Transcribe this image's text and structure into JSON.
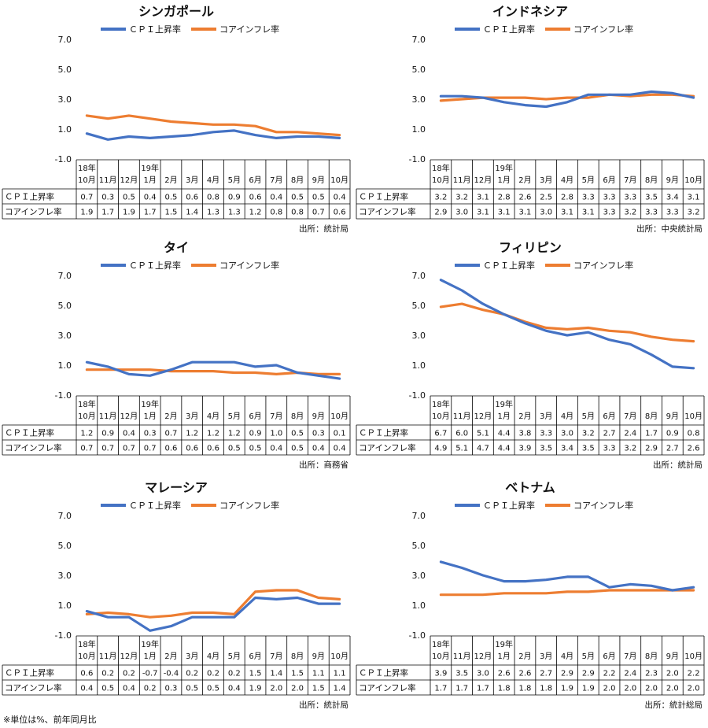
{
  "footnote": "※単位は%、前年同月比",
  "colors": {
    "cpi": "#4472c4",
    "core": "#ed7d31",
    "grid": "#000000"
  },
  "legend": {
    "cpi": "ＣＰＩ上昇率",
    "core": "コアインフレ率"
  },
  "row_labels": {
    "cpi": "ＣＰＩ上昇率",
    "core": "コアインフレ率"
  },
  "chart_data": [
    {
      "type": "line",
      "title": "シンガポール",
      "source": "出所：統計局",
      "ylim": [
        -1.0,
        7.0
      ],
      "yticks": [
        "7.0",
        "5.0",
        "3.0",
        "1.0",
        "-1.0"
      ],
      "categories": [
        [
          "18年",
          "10月"
        ],
        [
          "",
          "11月"
        ],
        [
          "",
          "12月"
        ],
        [
          "19年",
          "1月"
        ],
        [
          "",
          "2月"
        ],
        [
          "",
          "3月"
        ],
        [
          "",
          "4月"
        ],
        [
          "",
          "5月"
        ],
        [
          "",
          "6月"
        ],
        [
          "",
          "7月"
        ],
        [
          "",
          "8月"
        ],
        [
          "",
          "9月"
        ],
        [
          "",
          "10月"
        ]
      ],
      "series": [
        {
          "name": "ＣＰＩ上昇率",
          "values": [
            0.7,
            0.3,
            0.5,
            0.4,
            0.5,
            0.6,
            0.8,
            0.9,
            0.6,
            0.4,
            0.5,
            0.5,
            0.4
          ]
        },
        {
          "name": "コアインフレ率",
          "values": [
            1.9,
            1.7,
            1.9,
            1.7,
            1.5,
            1.4,
            1.3,
            1.3,
            1.2,
            0.8,
            0.8,
            0.7,
            0.6
          ]
        }
      ]
    },
    {
      "type": "line",
      "title": "インドネシア",
      "source": "出所：中央統計局",
      "ylim": [
        -1.0,
        7.0
      ],
      "yticks": [
        "7.0",
        "5.0",
        "3.0",
        "1.0",
        "-1.0"
      ],
      "categories": [
        [
          "18年",
          "10月"
        ],
        [
          "",
          "11月"
        ],
        [
          "",
          "12月"
        ],
        [
          "19年",
          "1月"
        ],
        [
          "",
          "2月"
        ],
        [
          "",
          "3月"
        ],
        [
          "",
          "4月"
        ],
        [
          "",
          "5月"
        ],
        [
          "",
          "6月"
        ],
        [
          "",
          "7月"
        ],
        [
          "",
          "8月"
        ],
        [
          "",
          "9月"
        ],
        [
          "",
          "10月"
        ]
      ],
      "series": [
        {
          "name": "ＣＰＩ上昇率",
          "values": [
            3.2,
            3.2,
            3.1,
            2.8,
            2.6,
            2.5,
            2.8,
            3.3,
            3.3,
            3.3,
            3.5,
            3.4,
            3.1
          ]
        },
        {
          "name": "コアインフレ率",
          "values": [
            2.9,
            3.0,
            3.1,
            3.1,
            3.1,
            3.0,
            3.1,
            3.1,
            3.3,
            3.2,
            3.3,
            3.3,
            3.2
          ]
        }
      ]
    },
    {
      "type": "line",
      "title": "タイ",
      "source": "出所：商務省",
      "ylim": [
        -1.0,
        7.0
      ],
      "yticks": [
        "7.0",
        "5.0",
        "3.0",
        "1.0",
        "-1.0"
      ],
      "categories": [
        [
          "18年",
          "10月"
        ],
        [
          "",
          "11月"
        ],
        [
          "",
          "12月"
        ],
        [
          "19年",
          "1月"
        ],
        [
          "",
          "2月"
        ],
        [
          "",
          "3月"
        ],
        [
          "",
          "4月"
        ],
        [
          "",
          "5月"
        ],
        [
          "",
          "6月"
        ],
        [
          "",
          "7月"
        ],
        [
          "",
          "8月"
        ],
        [
          "",
          "9月"
        ],
        [
          "",
          "10月"
        ]
      ],
      "series": [
        {
          "name": "ＣＰＩ上昇率",
          "values": [
            1.2,
            0.9,
            0.4,
            0.3,
            0.7,
            1.2,
            1.2,
            1.2,
            0.9,
            1.0,
            0.5,
            0.3,
            0.1
          ]
        },
        {
          "name": "コアインフレ率",
          "values": [
            0.7,
            0.7,
            0.7,
            0.7,
            0.6,
            0.6,
            0.6,
            0.5,
            0.5,
            0.4,
            0.5,
            0.4,
            0.4
          ]
        }
      ]
    },
    {
      "type": "line",
      "title": "フィリピン",
      "source": "出所：統計局",
      "ylim": [
        -1.0,
        7.0
      ],
      "yticks": [
        "7.0",
        "5.0",
        "3.0",
        "1.0",
        "-1.0"
      ],
      "categories": [
        [
          "18年",
          "10月"
        ],
        [
          "",
          "11月"
        ],
        [
          "",
          "12月"
        ],
        [
          "19年",
          "1月"
        ],
        [
          "",
          "2月"
        ],
        [
          "",
          "3月"
        ],
        [
          "",
          "4月"
        ],
        [
          "",
          "5月"
        ],
        [
          "",
          "6月"
        ],
        [
          "",
          "7月"
        ],
        [
          "",
          "8月"
        ],
        [
          "",
          "9月"
        ],
        [
          "",
          "10月"
        ]
      ],
      "series": [
        {
          "name": "ＣＰＩ上昇率",
          "values": [
            6.7,
            6.0,
            5.1,
            4.4,
            3.8,
            3.3,
            3.0,
            3.2,
            2.7,
            2.4,
            1.7,
            0.9,
            0.8
          ]
        },
        {
          "name": "コアインフレ率",
          "values": [
            4.9,
            5.1,
            4.7,
            4.4,
            3.9,
            3.5,
            3.4,
            3.5,
            3.3,
            3.2,
            2.9,
            2.7,
            2.6
          ]
        }
      ]
    },
    {
      "type": "line",
      "title": "マレーシア",
      "source": "出所：統計局",
      "ylim": [
        -1.0,
        7.0
      ],
      "yticks": [
        "7.0",
        "5.0",
        "3.0",
        "1.0",
        "-1.0"
      ],
      "categories": [
        [
          "18年",
          "10月"
        ],
        [
          "",
          "11月"
        ],
        [
          "",
          "12月"
        ],
        [
          "19年",
          "1月"
        ],
        [
          "",
          "2月"
        ],
        [
          "",
          "3月"
        ],
        [
          "",
          "4月"
        ],
        [
          "",
          "5月"
        ],
        [
          "",
          "6月"
        ],
        [
          "",
          "7月"
        ],
        [
          "",
          "8月"
        ],
        [
          "",
          "9月"
        ],
        [
          "",
          "10月"
        ]
      ],
      "series": [
        {
          "name": "ＣＰＩ上昇率",
          "values": [
            0.6,
            0.2,
            0.2,
            -0.7,
            -0.4,
            0.2,
            0.2,
            0.2,
            1.5,
            1.4,
            1.5,
            1.1,
            1.1
          ]
        },
        {
          "name": "コアインフレ率",
          "values": [
            0.4,
            0.5,
            0.4,
            0.2,
            0.3,
            0.5,
            0.5,
            0.4,
            1.9,
            2.0,
            2.0,
            1.5,
            1.4
          ]
        }
      ]
    },
    {
      "type": "line",
      "title": "ベトナム",
      "source": "出所：統計総局",
      "ylim": [
        -1.0,
        7.0
      ],
      "yticks": [
        "7.0",
        "5.0",
        "3.0",
        "1.0",
        "-1.0"
      ],
      "categories": [
        [
          "18年",
          "10月"
        ],
        [
          "",
          "11月"
        ],
        [
          "",
          "12月"
        ],
        [
          "19年",
          "1月"
        ],
        [
          "",
          "2月"
        ],
        [
          "",
          "3月"
        ],
        [
          "",
          "4月"
        ],
        [
          "",
          "5月"
        ],
        [
          "",
          "6月"
        ],
        [
          "",
          "7月"
        ],
        [
          "",
          "8月"
        ],
        [
          "",
          "9月"
        ],
        [
          "",
          "10月"
        ]
      ],
      "series": [
        {
          "name": "ＣＰＩ上昇率",
          "values": [
            3.9,
            3.5,
            3.0,
            2.6,
            2.6,
            2.7,
            2.9,
            2.9,
            2.2,
            2.4,
            2.3,
            2.0,
            2.2
          ]
        },
        {
          "name": "コアインフレ率",
          "values": [
            1.7,
            1.7,
            1.7,
            1.8,
            1.8,
            1.8,
            1.9,
            1.9,
            2.0,
            2.0,
            2.0,
            2.0,
            2.0
          ]
        }
      ]
    }
  ]
}
